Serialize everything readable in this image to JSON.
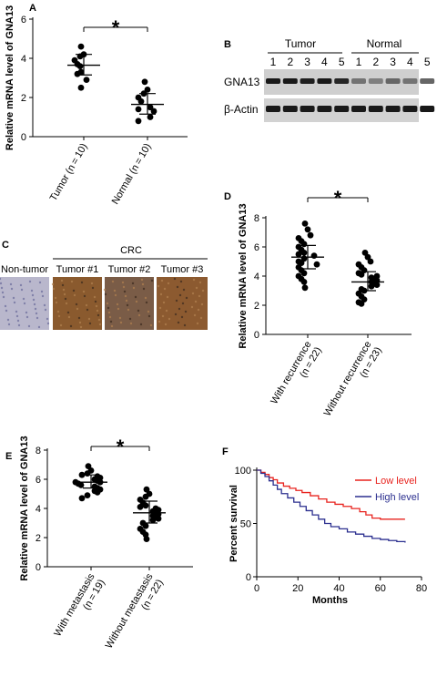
{
  "panel_a": {
    "letter": "A",
    "significance": "*",
    "chart_data": {
      "type": "scatter",
      "ylabel": "Relative mRNA level of GNA13",
      "ylim": [
        0,
        6
      ],
      "yticks": [
        "0",
        "2",
        "4",
        "6"
      ],
      "categories": [
        "Tumor (n = 10)",
        "Normal (n = 10)"
      ],
      "series": [
        {
          "values": [
            4.6,
            4.2,
            4.1,
            3.9,
            3.7,
            3.6,
            3.3,
            3.2,
            2.9,
            2.5
          ],
          "mean": 3.65,
          "sd_low": 3.15,
          "sd_high": 4.2
        },
        {
          "values": [
            2.8,
            2.4,
            2.2,
            2.0,
            1.8,
            1.5,
            1.4,
            1.3,
            1.0,
            0.8
          ],
          "mean": 1.65,
          "sd_low": 1.15,
          "sd_high": 2.2
        }
      ]
    }
  },
  "panel_b": {
    "letter": "B",
    "groups": [
      "Tumor",
      "Normal"
    ],
    "lanes": [
      "1",
      "2",
      "3",
      "4",
      "5",
      "1",
      "2",
      "3",
      "4",
      "5"
    ],
    "rows": [
      "GNA13",
      "β-Actin"
    ],
    "band_intensity": {
      "GNA13": [
        0.9,
        0.9,
        0.88,
        0.9,
        0.85,
        0.55,
        0.5,
        0.6,
        0.55,
        0.6
      ],
      "actin": [
        0.9,
        0.9,
        0.9,
        0.9,
        0.9,
        0.9,
        0.9,
        0.9,
        0.9,
        0.9
      ]
    }
  },
  "panel_c": {
    "letter": "C",
    "group_label": "CRC",
    "labels": [
      "Non-tumor",
      "Tumor #1",
      "Tumor #2",
      "Tumor #3"
    ],
    "stain_colors": [
      "#b9b7cc",
      "#8a5a2e",
      "#7a5c47",
      "#8c5a30"
    ]
  },
  "panel_d": {
    "letter": "D",
    "significance": "*",
    "chart_data": {
      "type": "scatter",
      "ylabel": "Relative mRNA level of GNA13",
      "ylim": [
        0,
        8
      ],
      "yticks": [
        "0",
        "2",
        "4",
        "6",
        "8"
      ],
      "categories": [
        [
          "With recurrence",
          "(n = 22)"
        ],
        [
          "Without recurrence",
          "(n = 23)"
        ]
      ],
      "series": [
        {
          "values": [
            7.6,
            7.2,
            6.8,
            6.6,
            6.4,
            6.2,
            6.0,
            5.8,
            5.6,
            5.5,
            5.4,
            5.2,
            5.0,
            4.9,
            4.8,
            4.6,
            4.4,
            4.2,
            4.0,
            3.8,
            3.6,
            3.2
          ],
          "mean": 5.3,
          "sd_low": 4.5,
          "sd_high": 6.1
        },
        {
          "values": [
            5.6,
            5.3,
            5.0,
            4.8,
            4.6,
            4.4,
            4.2,
            4.1,
            4.0,
            3.9,
            3.8,
            3.7,
            3.6,
            3.5,
            3.4,
            3.3,
            3.1,
            3.0,
            2.8,
            2.6,
            2.4,
            2.2,
            2.1
          ],
          "mean": 3.6,
          "sd_low": 3.0,
          "sd_high": 4.3
        }
      ]
    }
  },
  "panel_e": {
    "letter": "E",
    "significance": "*",
    "chart_data": {
      "type": "scatter",
      "ylabel": "Relative mRNA level of GNA13",
      "ylim": [
        0,
        8
      ],
      "yticks": [
        "0",
        "2",
        "4",
        "6",
        "8"
      ],
      "categories": [
        [
          "With metastasis",
          "(n = 19)"
        ],
        [
          "Without metastasis",
          "(n = 22)"
        ]
      ],
      "series": [
        {
          "values": [
            6.9,
            6.6,
            6.4,
            6.3,
            6.2,
            6.1,
            6.0,
            5.9,
            5.8,
            5.8,
            5.7,
            5.6,
            5.5,
            5.4,
            5.3,
            5.2,
            5.1,
            4.9,
            4.7
          ],
          "mean": 5.8,
          "sd_low": 5.4,
          "sd_high": 6.3
        },
        {
          "values": [
            5.3,
            5.0,
            4.8,
            4.6,
            4.4,
            4.2,
            4.1,
            4.0,
            3.9,
            3.8,
            3.7,
            3.6,
            3.5,
            3.4,
            3.3,
            3.2,
            3.0,
            2.8,
            2.6,
            2.4,
            2.2,
            1.9
          ],
          "mean": 3.7,
          "sd_low": 3.0,
          "sd_high": 4.5
        }
      ]
    }
  },
  "panel_f": {
    "letter": "F",
    "chart_data": {
      "type": "line",
      "xlabel": "Months",
      "ylabel": "Percent survival",
      "xlim": [
        0,
        80
      ],
      "ylim": [
        0,
        100
      ],
      "xticks": [
        "0",
        "20",
        "40",
        "60",
        "80"
      ],
      "yticks": [
        "0",
        "50",
        "100"
      ],
      "legend_position": "top-right",
      "series": [
        {
          "name": "Low level",
          "color": "#e8231e",
          "points": [
            [
              0,
              100
            ],
            [
              2,
              98
            ],
            [
              4,
              96
            ],
            [
              6,
              93
            ],
            [
              8,
              91
            ],
            [
              10,
              88
            ],
            [
              13,
              85
            ],
            [
              16,
              83
            ],
            [
              19,
              81
            ],
            [
              22,
              79
            ],
            [
              26,
              76
            ],
            [
              30,
              73
            ],
            [
              34,
              70
            ],
            [
              38,
              68
            ],
            [
              42,
              66
            ],
            [
              46,
              64
            ],
            [
              50,
              61
            ],
            [
              53,
              58
            ],
            [
              56,
              55
            ],
            [
              60,
              54
            ],
            [
              64,
              54
            ],
            [
              68,
              54
            ],
            [
              72,
              54
            ]
          ]
        },
        {
          "name": "High level",
          "color": "#2b2f8f",
          "points": [
            [
              0,
              100
            ],
            [
              2,
              97
            ],
            [
              4,
              94
            ],
            [
              6,
              90
            ],
            [
              8,
              86
            ],
            [
              10,
              82
            ],
            [
              12,
              78
            ],
            [
              15,
              74
            ],
            [
              18,
              70
            ],
            [
              21,
              66
            ],
            [
              24,
              62
            ],
            [
              27,
              58
            ],
            [
              30,
              54
            ],
            [
              33,
              50
            ],
            [
              36,
              47
            ],
            [
              40,
              45
            ],
            [
              44,
              42
            ],
            [
              48,
              40
            ],
            [
              52,
              38
            ],
            [
              56,
              36
            ],
            [
              60,
              35
            ],
            [
              64,
              34
            ],
            [
              68,
              33
            ],
            [
              72,
              32
            ]
          ]
        }
      ]
    }
  }
}
